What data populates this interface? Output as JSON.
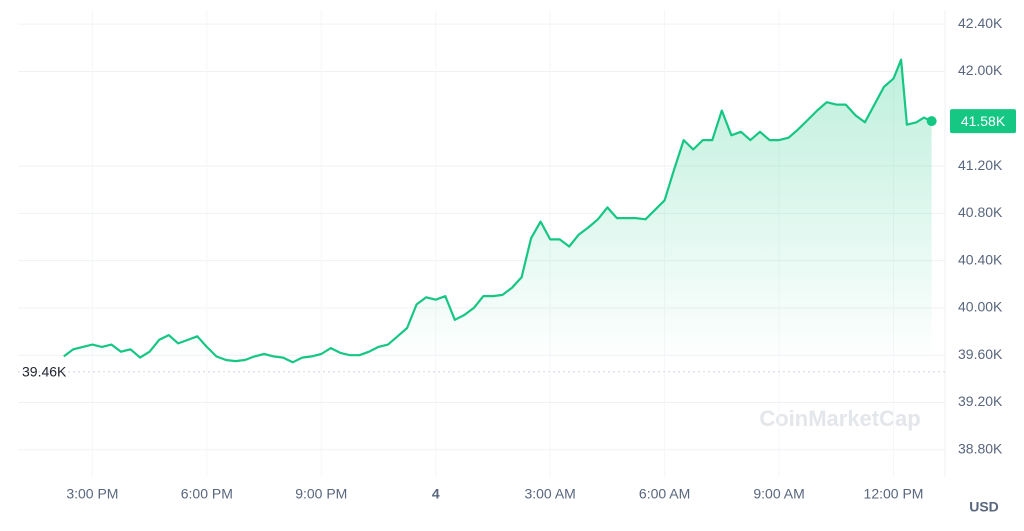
{
  "chart_data": {
    "type": "line",
    "x": [
      14.25,
      14.5,
      14.75,
      15,
      15.25,
      15.5,
      15.75,
      16,
      16.25,
      16.5,
      16.75,
      17,
      17.25,
      17.5,
      17.75,
      18,
      18.25,
      18.5,
      18.75,
      19,
      19.25,
      19.5,
      19.75,
      20,
      20.25,
      20.5,
      20.75,
      21,
      21.25,
      21.5,
      21.75,
      22,
      22.25,
      22.5,
      22.75,
      23,
      23.25,
      23.5,
      23.75,
      24,
      24.25,
      24.5,
      24.75,
      25,
      25.25,
      25.5,
      25.75,
      26,
      26.25,
      26.5,
      26.75,
      27,
      27.25,
      27.5,
      27.75,
      28,
      28.25,
      28.5,
      28.75,
      29,
      29.25,
      29.5,
      29.75,
      30,
      30.25,
      30.5,
      30.75,
      31,
      31.25,
      31.5,
      31.75,
      32,
      32.25,
      32.5,
      32.75,
      33,
      33.25,
      33.5,
      33.75,
      34,
      34.25,
      34.5,
      34.75,
      35,
      35.25,
      35.5,
      35.75,
      36,
      36.2,
      36.35,
      36.6,
      36.8,
      37.0
    ],
    "series": [
      {
        "name": "Price",
        "color": "#16c784",
        "values": [
          39590,
          39650,
          39670,
          39690,
          39670,
          39690,
          39630,
          39650,
          39580,
          39630,
          39730,
          39770,
          39700,
          39730,
          39760,
          39670,
          39590,
          39560,
          39550,
          39560,
          39590,
          39610,
          39590,
          39580,
          39540,
          39580,
          39590,
          39610,
          39660,
          39620,
          39600,
          39600,
          39630,
          39670,
          39690,
          39760,
          39830,
          40030,
          40090,
          40070,
          40100,
          39900,
          39940,
          40000,
          40100,
          40100,
          40110,
          40170,
          40260,
          40590,
          40730,
          40580,
          40580,
          40520,
          40620,
          40680,
          40750,
          40850,
          40760,
          40760,
          40760,
          40750,
          40830,
          40910,
          41170,
          41420,
          41340,
          41420,
          41420,
          41670,
          41460,
          41490,
          41420,
          41490,
          41420,
          41420,
          41440,
          41510,
          41590,
          41670,
          41740,
          41720,
          41720,
          41630,
          41570,
          41720,
          41870,
          41940,
          42100,
          41550,
          41570,
          41610,
          41580
        ]
      }
    ],
    "current_label": "41.58K",
    "reference_line": {
      "value": 39460,
      "label": "39.46K"
    },
    "xlim": [
      13.05,
      37.35
    ],
    "xticks": [
      {
        "value": 15,
        "label": "3:00 PM"
      },
      {
        "value": 18,
        "label": "6:00 PM"
      },
      {
        "value": 21,
        "label": "9:00 PM"
      },
      {
        "value": 24,
        "label": "4"
      },
      {
        "value": 27,
        "label": "3:00 AM"
      },
      {
        "value": 30,
        "label": "6:00 AM"
      },
      {
        "value": 33,
        "label": "9:00 AM"
      },
      {
        "value": 36,
        "label": "12:00 PM"
      }
    ],
    "ylim": [
      38570,
      42520
    ],
    "yticks": [
      {
        "value": 42400,
        "label": "42.40K"
      },
      {
        "value": 42000,
        "label": "42.00K"
      },
      {
        "value": 41200,
        "label": "41.20K"
      },
      {
        "value": 40800,
        "label": "40.80K"
      },
      {
        "value": 40400,
        "label": "40.40K"
      },
      {
        "value": 40000,
        "label": "40.00K"
      },
      {
        "value": 39600,
        "label": "39.60K"
      },
      {
        "value": 39200,
        "label": "39.20K"
      },
      {
        "value": 38800,
        "label": "38.80K"
      }
    ],
    "y_axis_label": "USD",
    "watermark": "CoinMarketCap",
    "grid": true
  }
}
